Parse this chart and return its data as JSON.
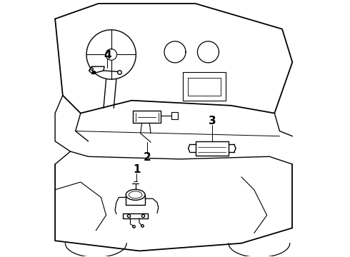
{
  "title": "",
  "background_color": "#ffffff",
  "line_color": "#000000",
  "label_color": "#000000",
  "figsize": [
    4.9,
    3.6
  ],
  "dpi": 100,
  "label_fontsize": 11
}
